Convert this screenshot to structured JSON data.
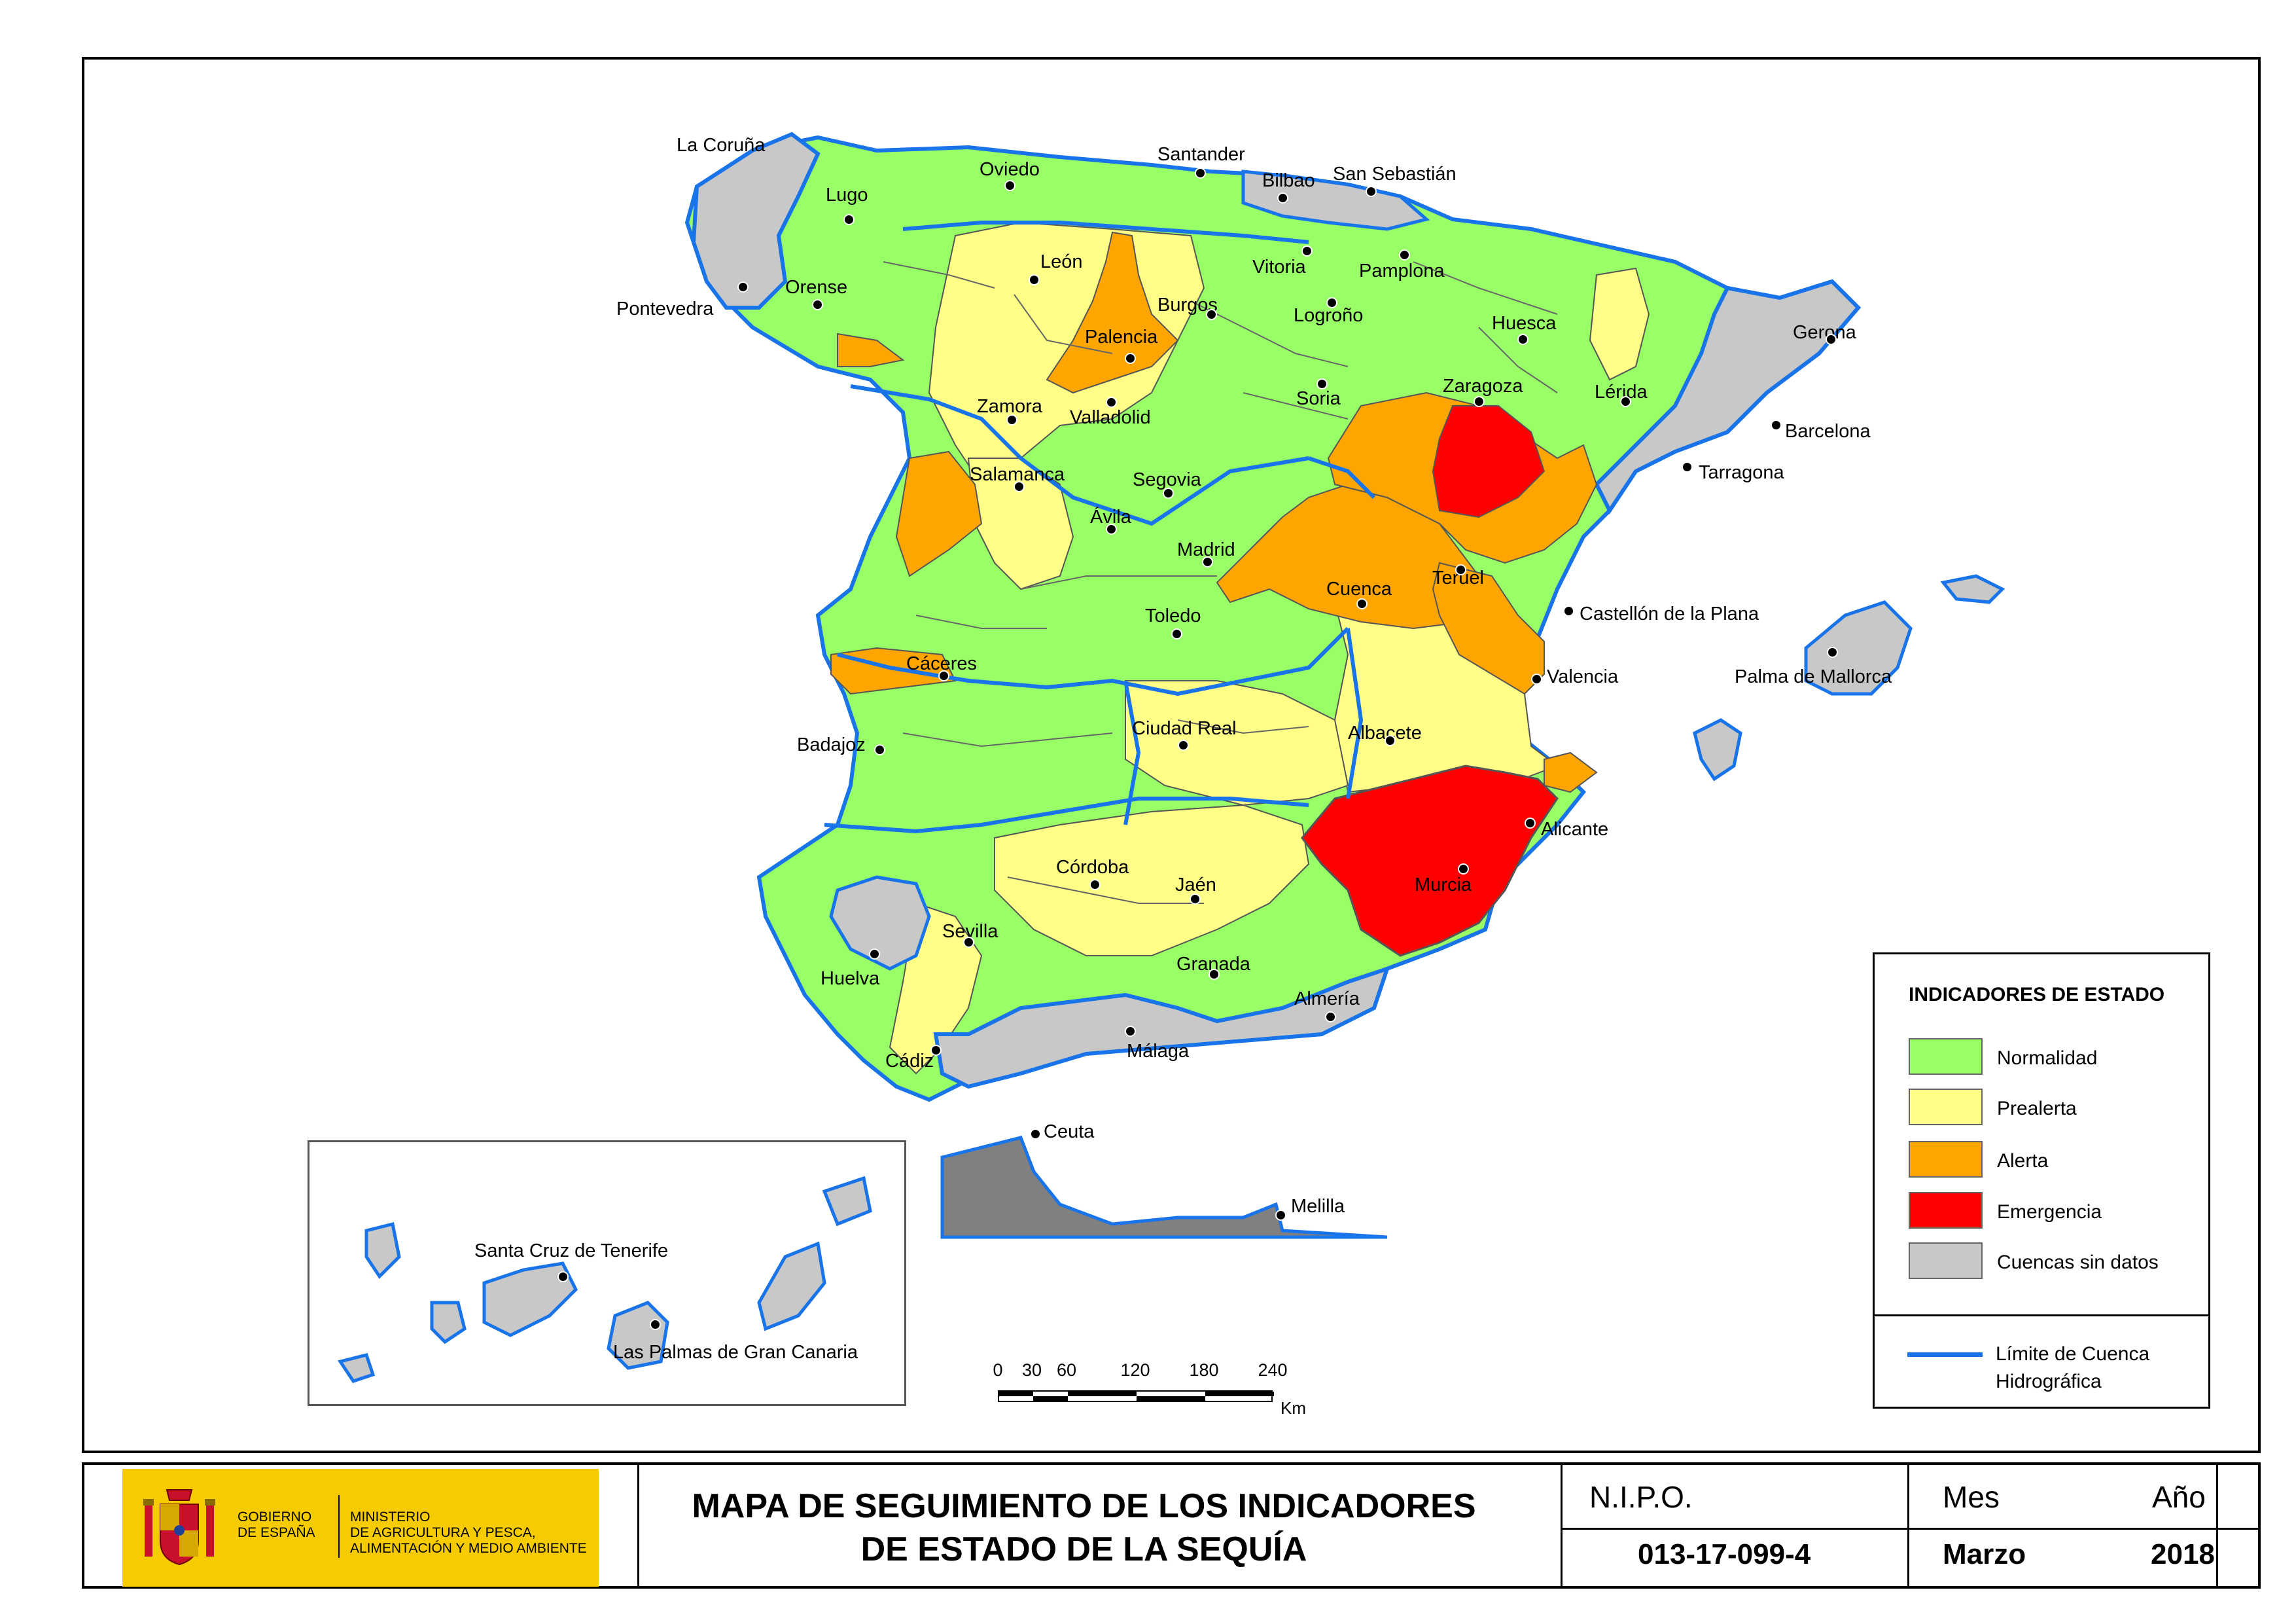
{
  "colors": {
    "normalidad": "#99ff66",
    "prealerta": "#ffff88",
    "alerta": "#ffa500",
    "emergencia": "#ff0000",
    "sin_datos": "#c8c8c8",
    "cuenca_limit": "#1874e8"
  },
  "cities": {
    "la_coruna": "La Coruña",
    "lugo": "Lugo",
    "oviedo": "Oviedo",
    "santander": "Santander",
    "bilbao": "Bilbao",
    "san_sebastian": "San Sebastián",
    "pontevedra": "Pontevedra",
    "orense": "Orense",
    "leon": "León",
    "palencia": "Palencia",
    "burgos": "Burgos",
    "vitoria": "Vitoria",
    "pamplona": "Pamplona",
    "logrono": "Logroño",
    "huesca": "Huesca",
    "gerona": "Gerona",
    "zamora": "Zamora",
    "valladolid": "Valladolid",
    "soria": "Soria",
    "zaragoza": "Zaragoza",
    "lerida": "Lérida",
    "barcelona": "Barcelona",
    "tarragona": "Tarragona",
    "salamanca": "Salamanca",
    "segovia": "Segovia",
    "avila": "Ávila",
    "madrid": "Madrid",
    "teruel": "Teruel",
    "cuenca": "Cuenca",
    "toledo": "Toledo",
    "castellon": "Castellón de la Plana",
    "caceres": "Cáceres",
    "valencia": "Valencia",
    "palma": "Palma de Mallorca",
    "badajoz": "Badajoz",
    "ciudad_real": "Ciudad Real",
    "albacete": "Albacete",
    "alicante": "Alicante",
    "cordoba": "Córdoba",
    "jaen": "Jaén",
    "murcia": "Murcia",
    "sevilla": "Sevilla",
    "huelva": "Huelva",
    "granada": "Granada",
    "almeria": "Almería",
    "cadiz": "Cádiz",
    "malaga": "Málaga",
    "ceuta": "Ceuta",
    "melilla": "Melilla",
    "santa_cruz": "Santa Cruz de Tenerife",
    "las_palmas": "Las Palmas de Gran Canaria"
  },
  "legend": {
    "title": "INDICADORES DE ESTADO",
    "items": [
      {
        "label": "Normalidad",
        "color": "#99ff66"
      },
      {
        "label": "Prealerta",
        "color": "#ffff88"
      },
      {
        "label": "Alerta",
        "color": "#ffa500"
      },
      {
        "label": "Emergencia",
        "color": "#ff0000"
      },
      {
        "label": "Cuencas sin datos",
        "color": "#c8c8c8"
      }
    ],
    "limit_label_line1": "Límite de Cuenca",
    "limit_label_line2": "Hidrográfica"
  },
  "scale": {
    "ticks": [
      "0",
      "30",
      "60",
      "120",
      "180",
      "240"
    ],
    "unit": "Km"
  },
  "title_block": {
    "logo_line1a": "GOBIERNO",
    "logo_line1b": "DE ESPAÑA",
    "logo_line2a": "MINISTERIO",
    "logo_line2b": "DE AGRICULTURA Y PESCA,",
    "logo_line2c": "ALIMENTACIÓN Y MEDIO AMBIENTE",
    "title_line1": "MAPA DE SEGUIMIENTO DE LOS INDICADORES",
    "title_line2": "DE ESTADO DE LA SEQUÍA",
    "nipo_label": "N.I.P.O.",
    "nipo_value": "013-17-099-4",
    "mes_label": "Mes",
    "mes_value": "Marzo",
    "ano_label": "Año",
    "ano_value": "2018"
  }
}
